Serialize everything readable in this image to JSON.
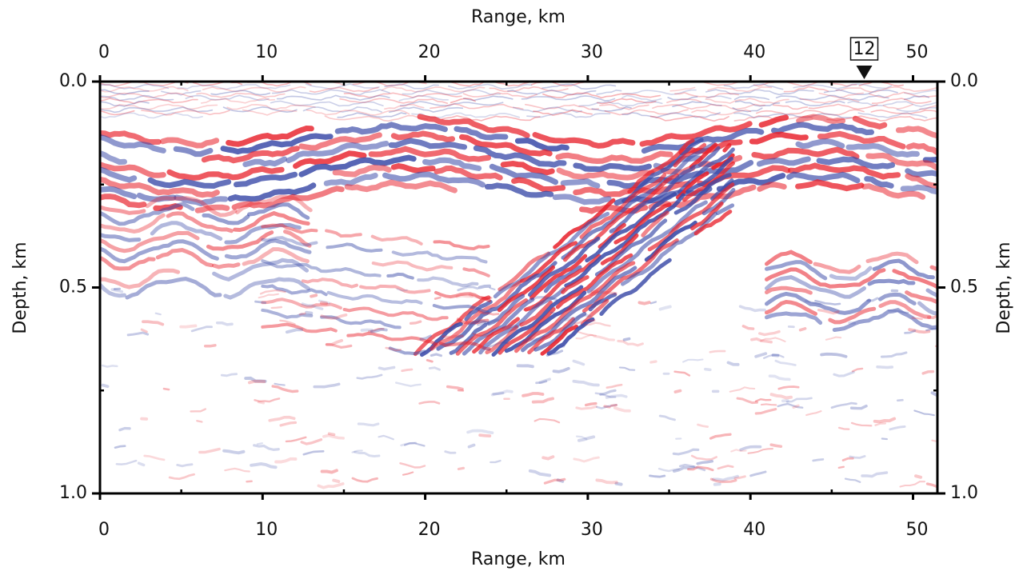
{
  "chart_data": {
    "type": "seismic-section",
    "x_label_top": "Range, km",
    "x_label_bottom": "Range, km",
    "y_label_left": "Depth, km",
    "y_label_right": "Depth, km",
    "xlim": [
      0,
      51.5
    ],
    "ylim": [
      0,
      1
    ],
    "y_inverted": true,
    "xticks": [
      0,
      10,
      20,
      30,
      40,
      50
    ],
    "xminor_ticks": [
      5,
      15,
      25,
      35,
      45
    ],
    "yticks": [
      {
        "value": 0,
        "label": "0.0"
      },
      {
        "value": 0.5,
        "label": "0.5"
      },
      {
        "value": 1,
        "label": "1.0"
      }
    ],
    "yminor_ticks": [
      0.25,
      0.75
    ],
    "colors": {
      "positive": "#e8202a",
      "negative": "#3a4aa8"
    },
    "annotations": [
      {
        "text": "12",
        "x": 47
      }
    ]
  }
}
